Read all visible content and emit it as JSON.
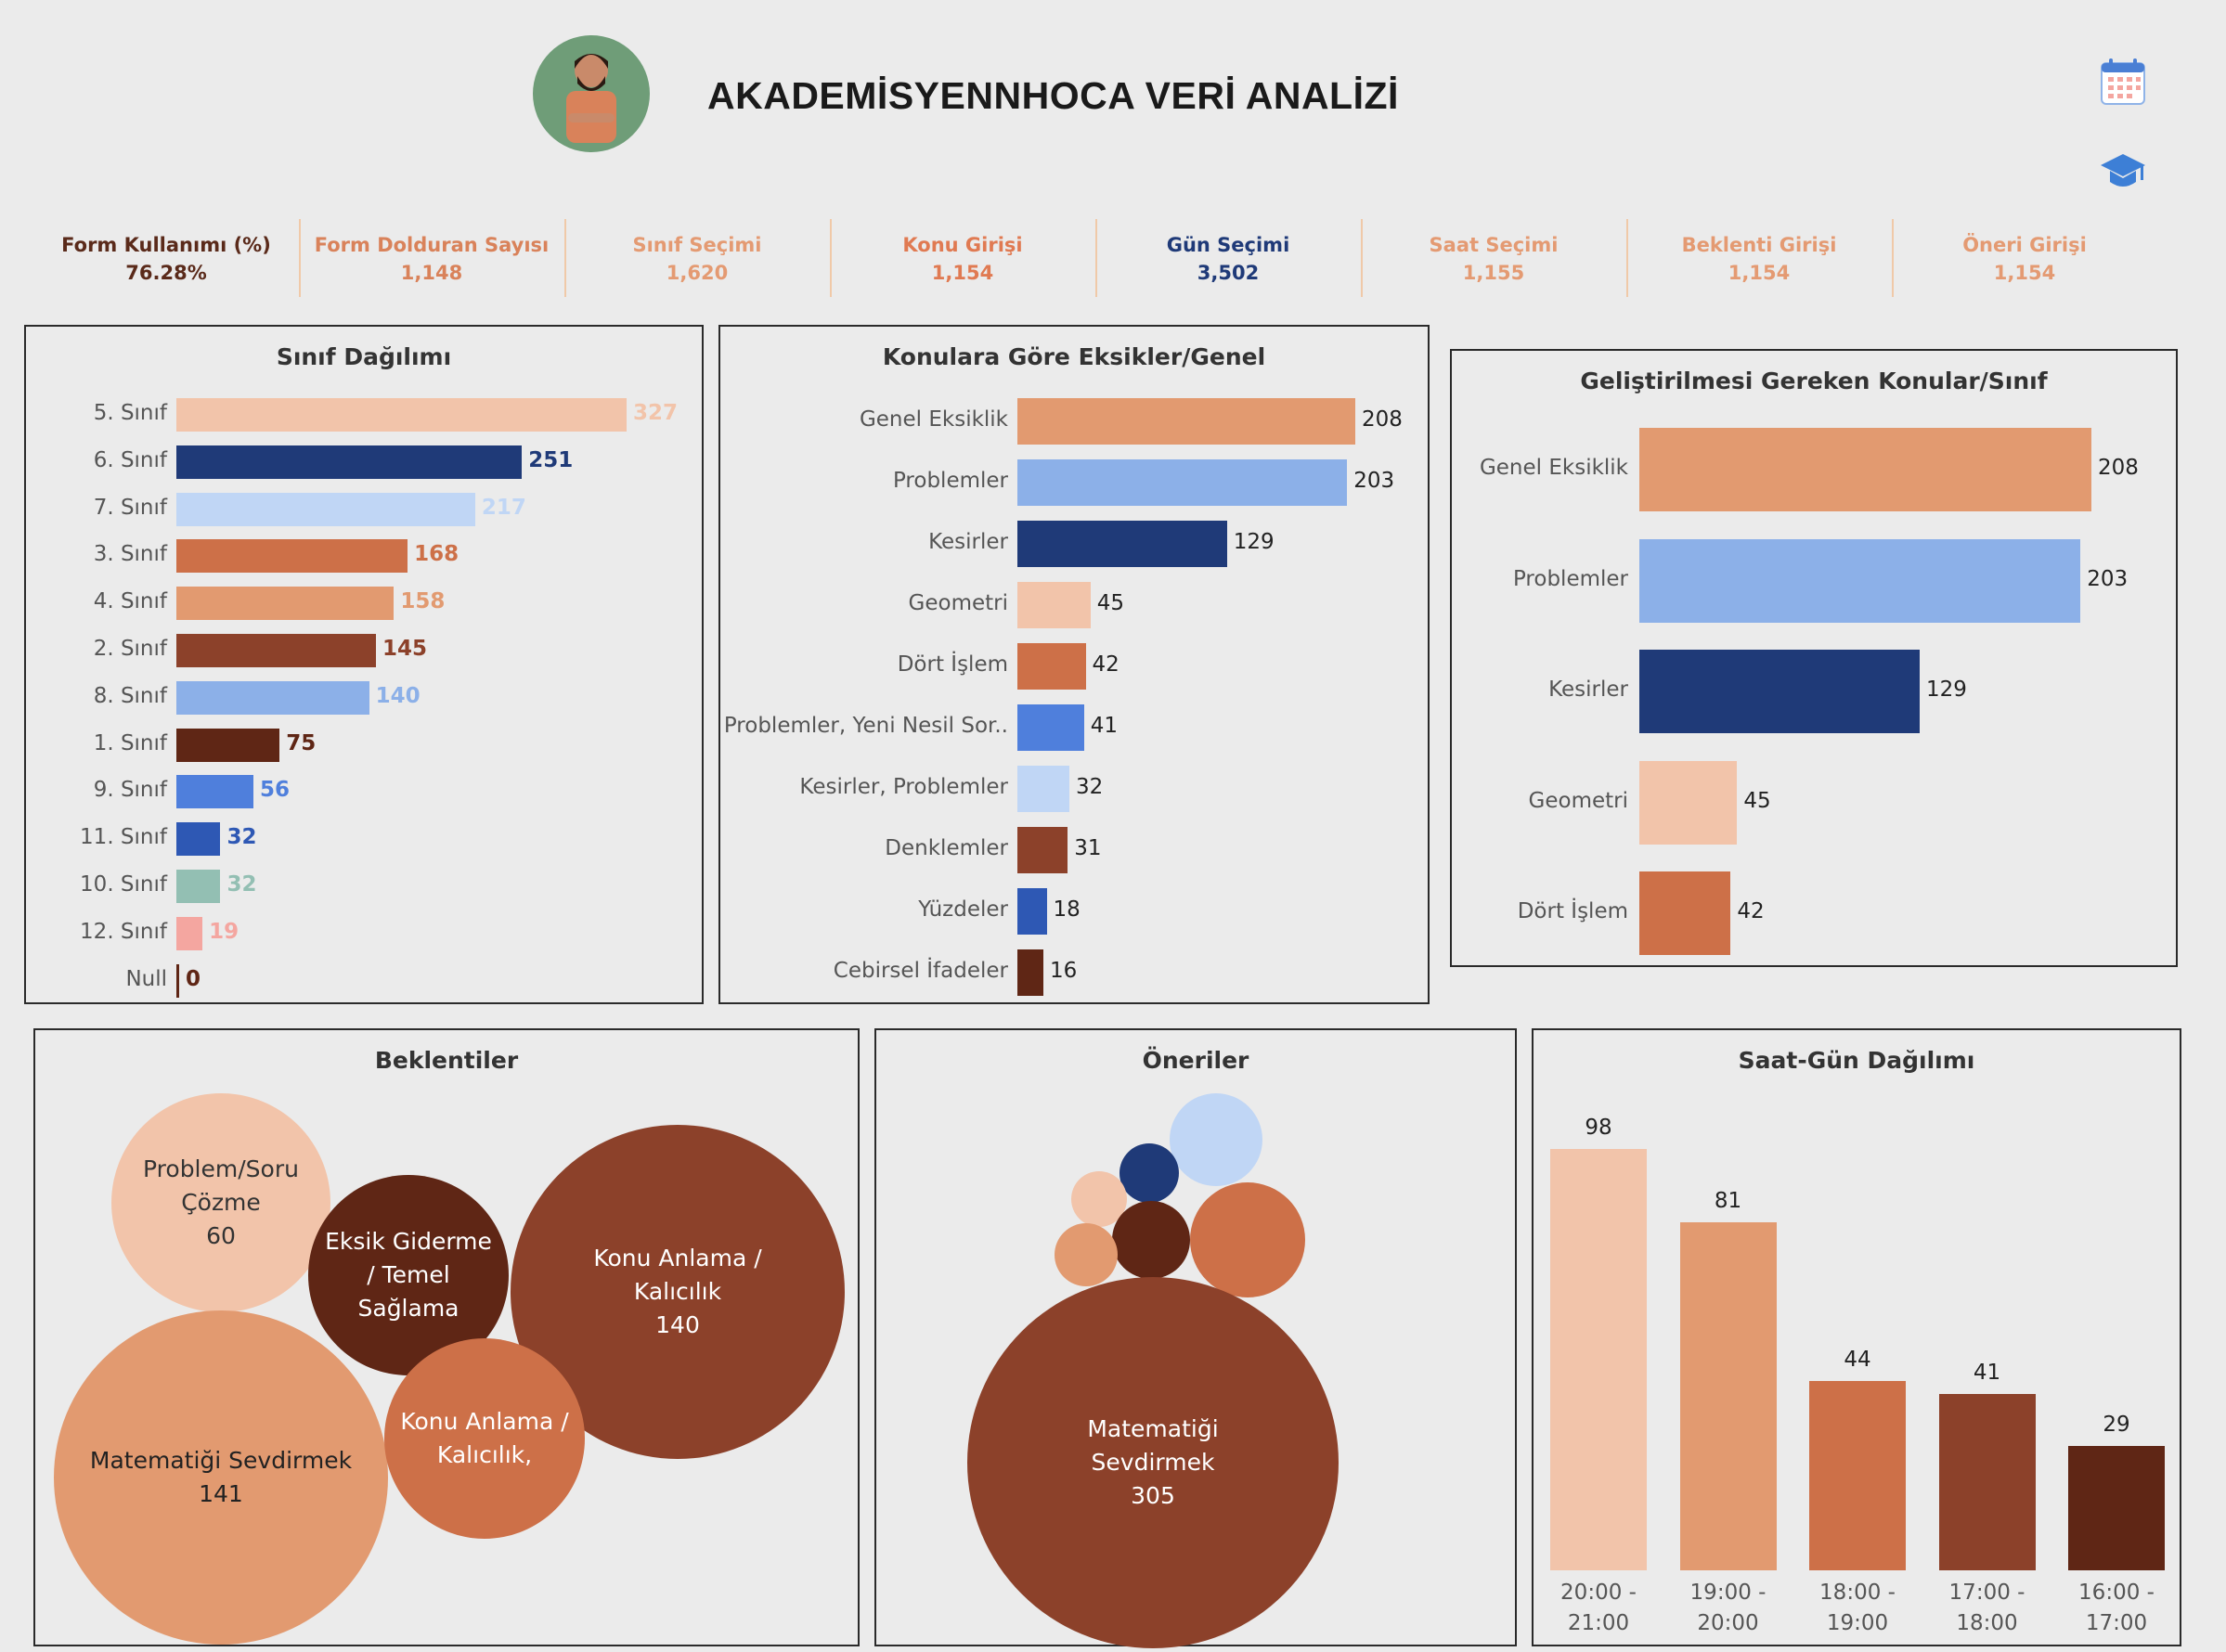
{
  "header": {
    "title": "AKADEMİSYENNHOCA VERİ ANALİZİ"
  },
  "kpis": [
    {
      "label": "Form Kullanımı (%)",
      "value": "76.28%",
      "color": "#5a2a1a"
    },
    {
      "label": "Form Dolduran Sayısı",
      "value": "1,148",
      "color": "#d9825a"
    },
    {
      "label": "Sınıf Seçimi",
      "value": "1,620",
      "color": "#e49a72"
    },
    {
      "label": "Konu Girişi",
      "value": "1,154",
      "color": "#e07a52"
    },
    {
      "label": "Gün Seçimi",
      "value": "3,502",
      "color": "#1f3a78"
    },
    {
      "label": "Saat Seçimi",
      "value": "1,155",
      "color": "#e49a72"
    },
    {
      "label": "Beklenti Girişi",
      "value": "1,154",
      "color": "#e49a72"
    },
    {
      "label": "Öneri Girişi",
      "value": "1,154",
      "color": "#e49a72"
    }
  ],
  "chart_data": [
    {
      "type": "bar",
      "orientation": "horizontal",
      "title": "Sınıf Dağılımı",
      "categories": [
        "5. Sınıf",
        "6. Sınıf",
        "7. Sınıf",
        "3. Sınıf",
        "4. Sınıf",
        "2. Sınıf",
        "8. Sınıf",
        "1. Sınıf",
        "9. Sınıf",
        "11. Sınıf",
        "10. Sınıf",
        "12. Sınıf",
        "Null"
      ],
      "values": [
        327,
        251,
        217,
        168,
        158,
        145,
        140,
        75,
        56,
        32,
        32,
        19,
        0
      ],
      "labels": [
        "327",
        "251",
        "217",
        "168",
        "158",
        "145",
        "140",
        "75",
        "56",
        "32",
        "32",
        "19",
        "0"
      ],
      "colors": [
        "#f2c4aa",
        "#1f3a78",
        "#c0d6f5",
        "#cd7048",
        "#e29a70",
        "#8c412a",
        "#8cb0e8",
        "#5f2615",
        "#4f7fdc",
        "#2e58b4",
        "#93bfb3",
        "#f4a6a0",
        "#5f2615"
      ]
    },
    {
      "type": "bar",
      "orientation": "horizontal",
      "title": "Konulara Göre Eksikler/Genel",
      "categories": [
        "Genel Eksiklik",
        "Problemler",
        "Kesirler",
        "Geometri",
        "Dört İşlem",
        "Problemler, Yeni Nesil Sor..",
        "Kesirler, Problemler",
        "Denklemler",
        "Yüzdeler",
        "Cebirsel İfadeler"
      ],
      "values": [
        208,
        203,
        129,
        45,
        42,
        41,
        32,
        31,
        18,
        16
      ],
      "labels": [
        "208",
        "203",
        "129",
        "45",
        "42",
        "41",
        "32",
        "31",
        "18",
        "16"
      ],
      "colors": [
        "#e29a70",
        "#8cb0e8",
        "#1f3a78",
        "#f2c4aa",
        "#cd7048",
        "#4f7fdc",
        "#c0d6f5",
        "#8c412a",
        "#2e58b4",
        "#5f2615"
      ]
    },
    {
      "type": "bar",
      "orientation": "horizontal",
      "title": "Geliştirilmesi Gereken Konular/Sınıf",
      "categories": [
        "Genel Eksiklik",
        "Problemler",
        "Kesirler",
        "Geometri",
        "Dört İşlem"
      ],
      "values": [
        208,
        203,
        129,
        45,
        42
      ],
      "labels": [
        "208",
        "203",
        "129",
        "45",
        "42"
      ],
      "colors": [
        "#e29a70",
        "#8cb0e8",
        "#1f3a78",
        "#f2c4aa",
        "#cd7048"
      ]
    },
    {
      "type": "bubble",
      "title": "Beklentiler",
      "items": [
        {
          "label": "Problem/Soru Çözme",
          "value": 60,
          "value_label": "60",
          "color": "#f2c4aa",
          "text_color": "#333333"
        },
        {
          "label": "Eksik Giderme / Temel Sağlama",
          "value": 38,
          "value_label": "",
          "color": "#5f2615",
          "text_color": "#ffffff"
        },
        {
          "label": "Konu Anlama / Kalıcılık",
          "value": 140,
          "value_label": "140",
          "color": "#8c412a",
          "text_color": "#ffffff"
        },
        {
          "label": "Matematiği Sevdirmek",
          "value": 141,
          "value_label": "141",
          "color": "#e29a70",
          "text_color": "#222222"
        },
        {
          "label": "Konu Anlama / Kalıcılık,",
          "value": 50,
          "value_label": "",
          "color": "#cd7048",
          "text_color": "#ffffff"
        }
      ]
    },
    {
      "type": "bubble",
      "title": "Öneriler",
      "items": [
        {
          "label": "",
          "value": 11,
          "value_label": "",
          "color": "#c0d6f5",
          "text_color": "#ffffff"
        },
        {
          "label": "",
          "value": 4,
          "value_label": "",
          "color": "#1f3a78",
          "text_color": "#ffffff"
        },
        {
          "label": "",
          "value": 4,
          "value_label": "",
          "color": "#f2c4aa",
          "text_color": "#ffffff"
        },
        {
          "label": "",
          "value": 7,
          "value_label": "",
          "color": "#5f2615",
          "text_color": "#ffffff"
        },
        {
          "label": "",
          "value": 5,
          "value_label": "",
          "color": "#e29a70",
          "text_color": "#ffffff"
        },
        {
          "label": "",
          "value": 17,
          "value_label": "",
          "color": "#cd7048",
          "text_color": "#ffffff"
        },
        {
          "label": "Matematiği Sevdirmek",
          "value": 305,
          "value_label": "305",
          "color": "#8c412a",
          "text_color": "#ffffff"
        }
      ]
    },
    {
      "type": "bar",
      "orientation": "vertical",
      "title": "Saat-Gün Dağılımı",
      "categories": [
        "20:00 - 21:00",
        "19:00 - 20:00",
        "18:00 - 19:00",
        "17:00 - 18:00",
        "16:00 - 17:00"
      ],
      "values": [
        98,
        81,
        44,
        41,
        29
      ],
      "labels": [
        "98",
        "81",
        "44",
        "41",
        "29"
      ],
      "colors": [
        "#f2c4aa",
        "#e29a70",
        "#cd7048",
        "#8c412a",
        "#5f2615"
      ]
    }
  ]
}
